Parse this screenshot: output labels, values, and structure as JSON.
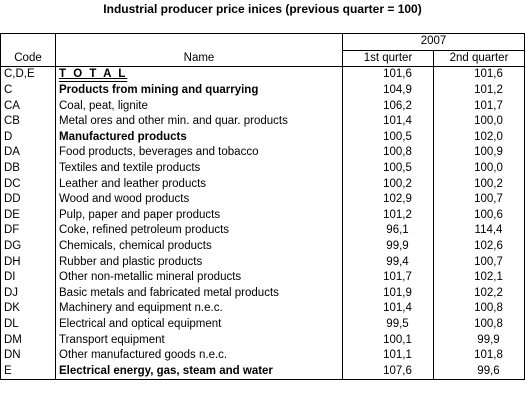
{
  "title": "Industrial producer price inices (previous quarter = 100)",
  "header": {
    "code": "Code",
    "name": "Name",
    "year": "2007",
    "q1": "1st qurter",
    "q2": "2nd quarter"
  },
  "rows": [
    {
      "code": "C,D,E",
      "name": "T O T A L",
      "q1": "101,6",
      "q2": "101,6",
      "style": "total"
    },
    {
      "code": "C",
      "name": "Products from mining and quarrying",
      "q1": "104,9",
      "q2": "101,2",
      "style": "bold"
    },
    {
      "code": "CA",
      "name": "Coal, peat, lignite",
      "q1": "106,2",
      "q2": "101,7",
      "style": ""
    },
    {
      "code": "CB",
      "name": "Metal ores and other min. and quar. products",
      "q1": "101,4",
      "q2": "100,0",
      "style": ""
    },
    {
      "code": "D",
      "name": "Manufactured products",
      "q1": "100,5",
      "q2": "102,0",
      "style": "bold"
    },
    {
      "code": "DA",
      "name": "Food products, beverages and tobacco",
      "q1": "100,8",
      "q2": "100,9",
      "style": ""
    },
    {
      "code": "DB",
      "name": "Textiles and textile products",
      "q1": "100,5",
      "q2": "100,0",
      "style": ""
    },
    {
      "code": "DC",
      "name": "Leather and leather products",
      "q1": "100,2",
      "q2": "100,2",
      "style": ""
    },
    {
      "code": "DD",
      "name": "Wood and wood products",
      "q1": "102,9",
      "q2": "100,7",
      "style": ""
    },
    {
      "code": "DE",
      "name": "Pulp, paper and paper products",
      "q1": "101,2",
      "q2": "100,6",
      "style": ""
    },
    {
      "code": "DF",
      "name": "Coke, refined petroleum products",
      "q1": "96,1",
      "q2": "114,4",
      "style": ""
    },
    {
      "code": "DG",
      "name": "Chemicals, chemical products",
      "q1": "99,9",
      "q2": "102,6",
      "style": ""
    },
    {
      "code": "DH",
      "name": "Rubber and plastic products",
      "q1": "99,4",
      "q2": "100,7",
      "style": ""
    },
    {
      "code": "DI",
      "name": "Other non-metallic mineral products",
      "q1": "101,7",
      "q2": "102,1",
      "style": ""
    },
    {
      "code": "DJ",
      "name": "Basic metals and fabricated metal products",
      "q1": "101,9",
      "q2": "102,2",
      "style": ""
    },
    {
      "code": "DK",
      "name": "Machinery and equipment n.e.c.",
      "q1": "101,4",
      "q2": "100,8",
      "style": ""
    },
    {
      "code": "DL",
      "name": "Electrical and optical equipment",
      "q1": "99,5",
      "q2": "100,8",
      "style": ""
    },
    {
      "code": "DM",
      "name": "Transport equipment",
      "q1": "100,1",
      "q2": "99,9",
      "style": ""
    },
    {
      "code": "DN",
      "name": "Other manufactured goods n.e.c.",
      "q1": "101,1",
      "q2": "101,8",
      "style": ""
    },
    {
      "code": "E",
      "name": "Electrical energy, gas, steam and water",
      "q1": "107,6",
      "q2": "99,6",
      "style": "bold"
    }
  ]
}
